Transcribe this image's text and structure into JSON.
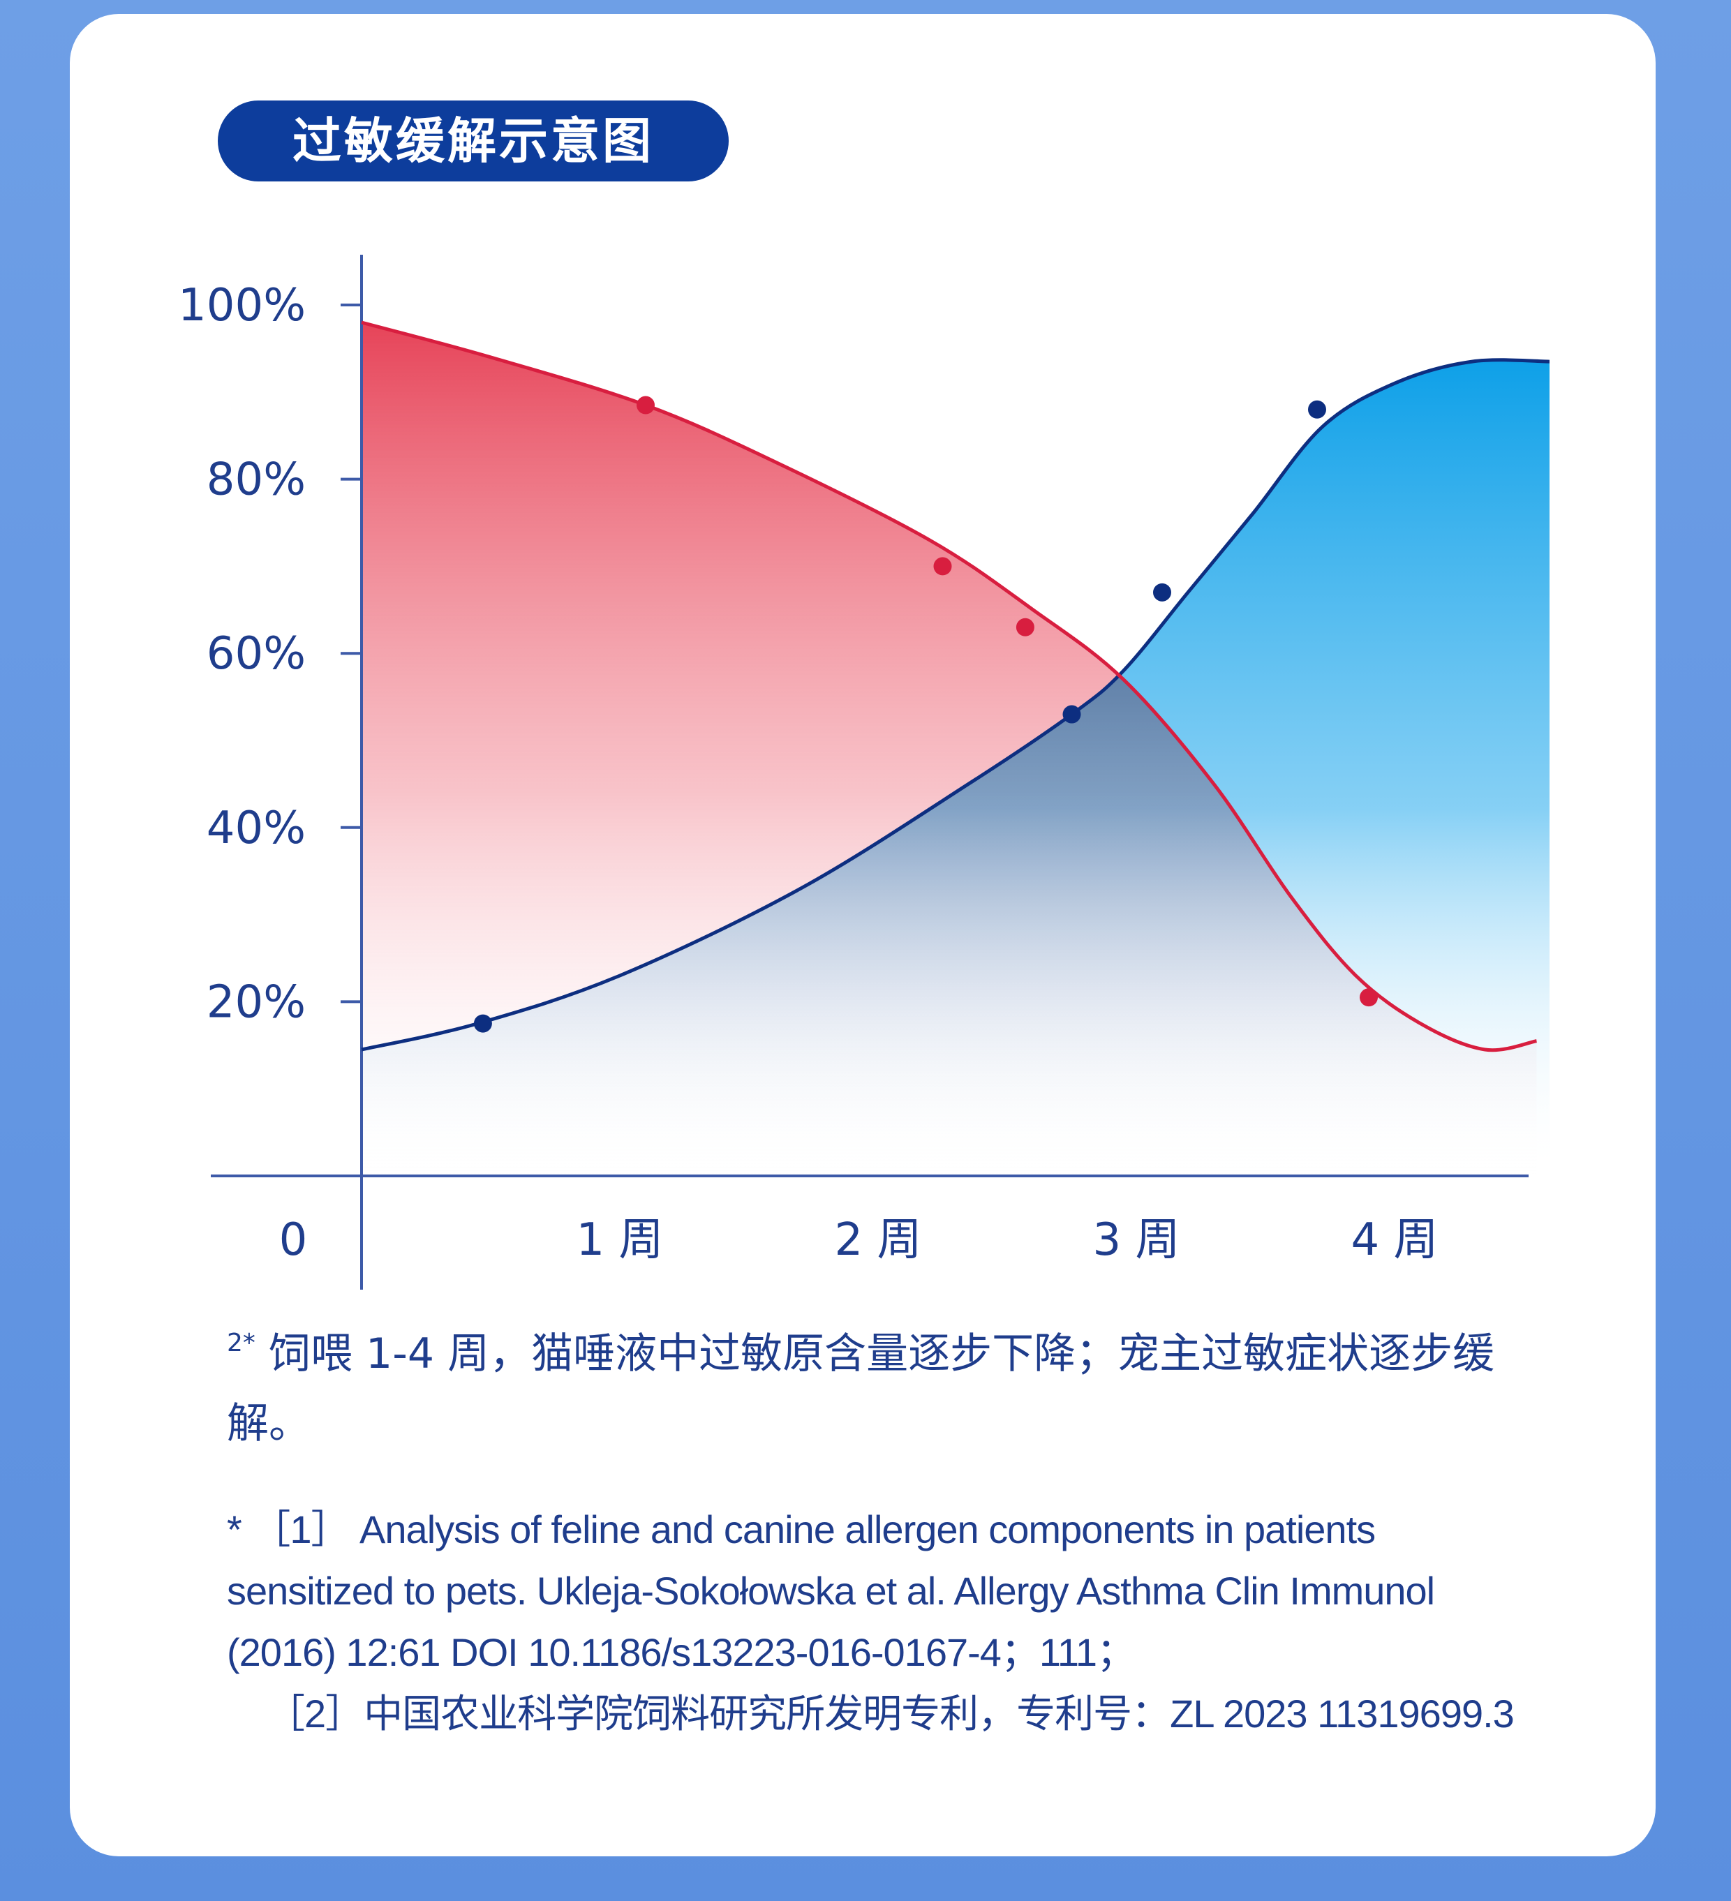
{
  "title": "过敏缓解示意图",
  "note": {
    "marker": "2*",
    "text": "饲喂 1-4 周，猫唾液中过敏原含量逐步下降；宠主过敏症状逐步缓解。"
  },
  "references": {
    "ref1": "* ［1］ Analysis of feline and canine allergen components in patients sensitized to pets. Ukleja-Sokołowska et al. Allergy Asthma Clin Immunol (2016) 12:61 DOI 10.1186/s13223-016-0167-4；111；",
    "ref2": "［2］中国农业科学院饲料研究所发明专利，专利号：ZL 2023 11319699.3"
  },
  "colors": {
    "red_line": "#d81e3f",
    "blue_line": "#0d2e80",
    "red_fill": "#e53a50",
    "blue_fill": "#0ea0e8",
    "axis": "#3d5aa8",
    "text": "#1f3d8c"
  },
  "chart_data": {
    "type": "area",
    "title": "",
    "xlabel": "",
    "ylabel": "",
    "origin_label": "0",
    "x_ticks": [
      {
        "x": 1,
        "label": "1 周"
      },
      {
        "x": 2,
        "label": "2 周"
      },
      {
        "x": 3,
        "label": "3 周"
      },
      {
        "x": 4,
        "label": "4 周"
      }
    ],
    "y_ticks": [
      {
        "y": 20,
        "label": "20%"
      },
      {
        "y": 40,
        "label": "40%"
      },
      {
        "y": 60,
        "label": "60%"
      },
      {
        "y": 80,
        "label": "80%"
      },
      {
        "y": 100,
        "label": "100%"
      }
    ],
    "xlim": [
      0,
      4.6
    ],
    "ylim": [
      0,
      100
    ],
    "grid": false,
    "legend": "none",
    "series": [
      {
        "key": "red",
        "curve": [
          [
            0,
            98
          ],
          [
            0.5,
            94
          ],
          [
            1.1,
            88.5
          ],
          [
            1.6,
            82
          ],
          [
            2.2,
            73
          ],
          [
            2.6,
            65
          ],
          [
            2.95,
            57
          ],
          [
            3.3,
            45
          ],
          [
            3.6,
            32
          ],
          [
            3.85,
            23
          ],
          [
            4.1,
            17.5
          ],
          [
            4.35,
            14.5
          ],
          [
            4.55,
            15.5
          ]
        ],
        "markers": [
          [
            1.1,
            88.5
          ],
          [
            2.25,
            70
          ],
          [
            2.57,
            63
          ],
          [
            3.9,
            20.5
          ]
        ]
      },
      {
        "key": "blue",
        "curve": [
          [
            0,
            14.5
          ],
          [
            0.45,
            17.5
          ],
          [
            1,
            23
          ],
          [
            1.7,
            33
          ],
          [
            2.35,
            45
          ],
          [
            2.75,
            53
          ],
          [
            2.95,
            58
          ],
          [
            3.2,
            67
          ],
          [
            3.45,
            76
          ],
          [
            3.72,
            86
          ],
          [
            4,
            91
          ],
          [
            4.3,
            93.5
          ],
          [
            4.6,
            93.5
          ]
        ],
        "markers": [
          [
            0.47,
            17.5
          ],
          [
            2.75,
            53
          ],
          [
            3.1,
            67
          ],
          [
            3.7,
            88
          ]
        ]
      }
    ]
  }
}
